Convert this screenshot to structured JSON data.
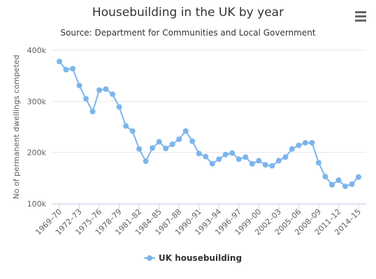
{
  "chart_data": {
    "type": "line",
    "title": "Housebuilding in the UK by year",
    "subtitle": "Source: Department for Communities and Local Government",
    "ylabel": "No of permanent dwellings competed",
    "ylim": [
      100000,
      400000
    ],
    "y_ticks": [
      100000,
      200000,
      300000,
      400000
    ],
    "y_tick_labels": [
      "100k",
      "200k",
      "300k",
      "400k"
    ],
    "x_tick_labels": [
      "1969–70",
      "1972–73",
      "1975–76",
      "1978–79",
      "1981–82",
      "1984–85",
      "1987–88",
      "1990–91",
      "1993–94",
      "1996–97",
      "1999–00",
      "2002–03",
      "2005–06",
      "2008–09",
      "2011–12",
      "2014–15"
    ],
    "grid": true,
    "legend_position": "bottom",
    "color": "#7cb5ec",
    "series": [
      {
        "name": "UK housebuilding",
        "values": [
          378000,
          362000,
          364000,
          331000,
          305000,
          280000,
          322000,
          324000,
          314000,
          289000,
          252000,
          242000,
          207000,
          183000,
          209000,
          221000,
          208000,
          216000,
          226000,
          242000,
          222000,
          198000,
          192000,
          178000,
          187000,
          196000,
          199000,
          187000,
          191000,
          178000,
          184000,
          176000,
          174000,
          184000,
          191000,
          207000,
          214000,
          219000,
          219000,
          180000,
          153000,
          137000,
          146000,
          134000,
          138000,
          152000
        ]
      }
    ]
  },
  "toolbar": {
    "menu_icon": "hamburger-menu-icon"
  }
}
